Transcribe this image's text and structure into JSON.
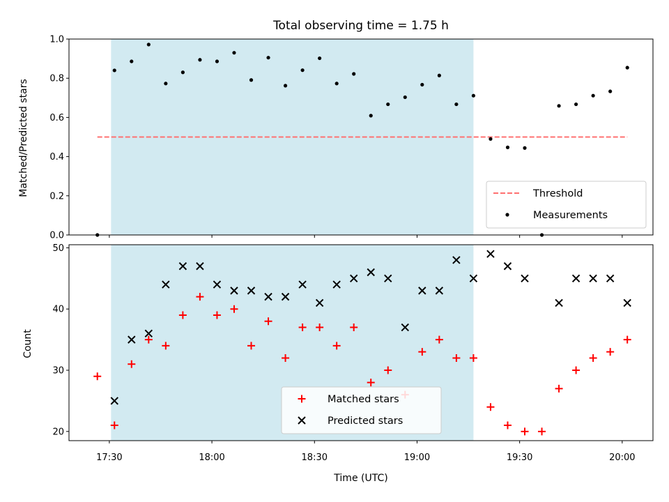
{
  "chart_data": [
    {
      "type": "scatter",
      "title": "Total observing time = 1.75 h",
      "xlabel": "",
      "ylabel": "Matched/Predicted stars",
      "ylim": [
        0.0,
        1.0
      ],
      "yticks": [
        "0.0",
        "0.2",
        "0.4",
        "0.6",
        "0.8",
        "1.0"
      ],
      "shaded_interval": [
        "17:30:30",
        "19:16:30"
      ],
      "shade_color": "#add8e6",
      "threshold": {
        "name": "Threshold",
        "value": 0.5,
        "color": "#ff7070"
      },
      "series": [
        {
          "name": "Measurements",
          "marker": "dot",
          "color": "#000000",
          "x": [
            "17:26:30",
            "17:31:30",
            "17:36:30",
            "17:41:30",
            "17:46:30",
            "17:51:30",
            "17:56:30",
            "18:01:30",
            "18:06:30",
            "18:11:30",
            "18:16:30",
            "18:21:30",
            "18:26:30",
            "18:31:30",
            "18:36:30",
            "18:41:30",
            "18:46:30",
            "18:51:30",
            "18:56:30",
            "19:01:30",
            "19:06:30",
            "19:11:30",
            "19:16:30",
            "19:21:30",
            "19:26:30",
            "19:31:30",
            "19:36:30",
            "19:41:30",
            "19:46:30",
            "19:51:30",
            "19:56:30",
            "20:01:30"
          ],
          "y": [
            0.0,
            0.84,
            0.886,
            0.972,
            0.773,
            0.83,
            0.894,
            0.886,
            0.93,
            0.791,
            0.905,
            0.762,
            0.841,
            0.902,
            0.773,
            0.822,
            0.609,
            0.667,
            0.703,
            0.767,
            0.814,
            0.667,
            0.711,
            0.49,
            0.447,
            0.444,
            0.0,
            0.659,
            0.667,
            0.711,
            0.733,
            0.854
          ]
        }
      ],
      "legend": {
        "position": "lower right",
        "entries": [
          "Threshold",
          "Measurements"
        ]
      }
    },
    {
      "type": "scatter",
      "title": "",
      "xlabel": "Time (UTC)",
      "ylabel": "Count",
      "ylim": [
        18.5,
        50.5
      ],
      "yticks": [
        "20",
        "30",
        "40",
        "50"
      ],
      "xticks": [
        "17:30",
        "18:00",
        "18:30",
        "19:00",
        "19:30",
        "20:00"
      ],
      "shaded_interval": [
        "17:30:30",
        "19:16:30"
      ],
      "series": [
        {
          "name": "Matched stars",
          "marker": "+",
          "color": "#ff0000",
          "x": [
            "17:26:30",
            "17:31:30",
            "17:36:30",
            "17:41:30",
            "17:46:30",
            "17:51:30",
            "17:56:30",
            "18:01:30",
            "18:06:30",
            "18:11:30",
            "18:16:30",
            "18:21:30",
            "18:26:30",
            "18:31:30",
            "18:36:30",
            "18:41:30",
            "18:46:30",
            "18:51:30",
            "18:56:30",
            "19:01:30",
            "19:06:30",
            "19:11:30",
            "19:16:30",
            "19:21:30",
            "19:26:30",
            "19:31:30",
            "19:36:30",
            "19:41:30",
            "19:46:30",
            "19:51:30",
            "19:56:30",
            "20:01:30"
          ],
          "y": [
            29,
            21,
            31,
            35,
            34,
            39,
            42,
            39,
            40,
            34,
            38,
            32,
            37,
            37,
            34,
            37,
            28,
            30,
            26,
            33,
            35,
            32,
            32,
            24,
            21,
            20,
            20,
            27,
            30,
            32,
            33,
            35
          ]
        },
        {
          "name": "Predicted stars",
          "marker": "x",
          "color": "#000000",
          "x": [
            "17:31:30",
            "17:36:30",
            "17:41:30",
            "17:46:30",
            "17:51:30",
            "17:56:30",
            "18:01:30",
            "18:06:30",
            "18:11:30",
            "18:16:30",
            "18:21:30",
            "18:26:30",
            "18:31:30",
            "18:36:30",
            "18:41:30",
            "18:46:30",
            "18:51:30",
            "18:56:30",
            "19:01:30",
            "19:06:30",
            "19:11:30",
            "19:16:30",
            "19:21:30",
            "19:26:30",
            "19:31:30",
            "19:41:30",
            "19:46:30",
            "19:51:30",
            "19:56:30",
            "20:01:30"
          ],
          "y": [
            25,
            35,
            36,
            44,
            47,
            47,
            44,
            43,
            43,
            42,
            42,
            44,
            41,
            44,
            45,
            46,
            45,
            37,
            43,
            43,
            48,
            45,
            49,
            47,
            45,
            41,
            45,
            45,
            45,
            41
          ]
        }
      ],
      "legend": {
        "position": "lower center",
        "entries": [
          "Matched stars",
          "Predicted stars"
        ]
      }
    }
  ]
}
